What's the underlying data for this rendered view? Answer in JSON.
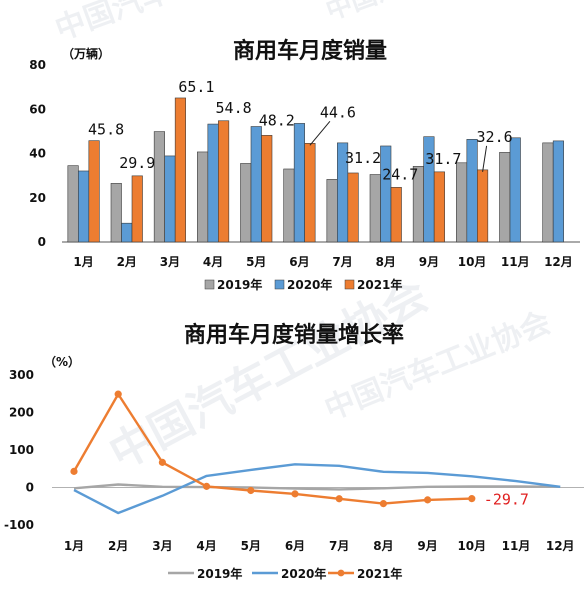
{
  "watermark": "中国汽车工业协会",
  "chart_data": [
    {
      "type": "bar",
      "title": "商用车月度销量",
      "unit": "（万辆）",
      "categories": [
        "1月",
        "2月",
        "3月",
        "4月",
        "5月",
        "6月",
        "7月",
        "8月",
        "9月",
        "10月",
        "11月",
        "12月"
      ],
      "ylim": [
        0,
        80
      ],
      "yticks": [
        0,
        20,
        40,
        60,
        80
      ],
      "legend_position": "bottom",
      "series": [
        {
          "name": "2019年",
          "color": "#a6a6a6",
          "values": [
            34.5,
            26.5,
            49.9,
            40.7,
            35.5,
            33.0,
            28.3,
            30.5,
            34.2,
            35.8,
            40.5,
            44.8
          ]
        },
        {
          "name": "2020年",
          "color": "#5b9bd5",
          "values": [
            32.1,
            8.5,
            38.9,
            53.3,
            52.2,
            53.6,
            44.8,
            43.4,
            47.6,
            46.4,
            47.1,
            45.7
          ]
        },
        {
          "name": "2021年",
          "color": "#ed7d31",
          "values": [
            45.8,
            29.9,
            65.1,
            54.8,
            48.2,
            44.6,
            31.2,
            24.7,
            31.7,
            32.6,
            null,
            null
          ]
        }
      ],
      "data_labels": [
        "45.8",
        "29.9",
        "65.1",
        "54.8",
        "48.2",
        "44.6",
        "31.2",
        "24.7",
        "31.7",
        "32.6"
      ]
    },
    {
      "type": "line",
      "title": "商用车月度销量增长率",
      "unit": "（%）",
      "categories": [
        "1月",
        "2月",
        "3月",
        "4月",
        "5月",
        "6月",
        "7月",
        "8月",
        "9月",
        "10月",
        "11月",
        "12月"
      ],
      "ylim": [
        -100,
        300
      ],
      "yticks": [
        -100,
        0,
        100,
        200,
        300
      ],
      "legend_position": "bottom",
      "series": [
        {
          "name": "2019年",
          "color": "#a6a6a6",
          "values": [
            -2,
            8,
            2,
            1,
            0,
            -3,
            -5,
            -2,
            2,
            3,
            3,
            2
          ]
        },
        {
          "name": "2020年",
          "color": "#5b9bd5",
          "values": [
            -7,
            -68,
            -22,
            31,
            47,
            62,
            58,
            42,
            39,
            30,
            17,
            2
          ]
        },
        {
          "name": "2021年",
          "color": "#ed7d31",
          "values": [
            43,
            249,
            67,
            3,
            -8,
            -17,
            -30,
            -43,
            -33,
            -29.7,
            null,
            null
          ]
        }
      ],
      "annotation": "-29.7"
    }
  ]
}
